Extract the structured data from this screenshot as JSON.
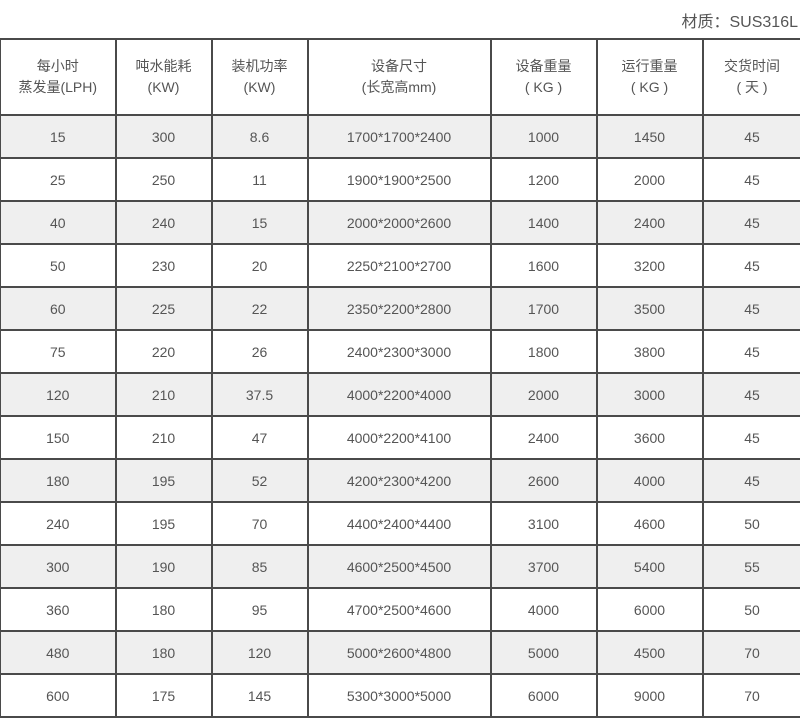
{
  "material_label": "材质：SUS316L",
  "headers": [
    [
      "每小时",
      "蒸发量(LPH)"
    ],
    [
      "吨水能耗",
      "(KW)"
    ],
    [
      "装机功率",
      "(KW)"
    ],
    [
      "设备尺寸",
      "(长宽高mm)"
    ],
    [
      "设备重量",
      "( KG )"
    ],
    [
      "运行重量",
      "( KG )"
    ],
    [
      "交货时间",
      "( 天 )"
    ]
  ],
  "rows": [
    [
      "15",
      "300",
      "8.6",
      "1700*1700*2400",
      "1000",
      "1450",
      "45"
    ],
    [
      "25",
      "250",
      "11",
      "1900*1900*2500",
      "1200",
      "2000",
      "45"
    ],
    [
      "40",
      "240",
      "15",
      "2000*2000*2600",
      "1400",
      "2400",
      "45"
    ],
    [
      "50",
      "230",
      "20",
      "2250*2100*2700",
      "1600",
      "3200",
      "45"
    ],
    [
      "60",
      "225",
      "22",
      "2350*2200*2800",
      "1700",
      "3500",
      "45"
    ],
    [
      "75",
      "220",
      "26",
      "2400*2300*3000",
      "1800",
      "3800",
      "45"
    ],
    [
      "120",
      "210",
      "37.5",
      "4000*2200*4000",
      "2000",
      "3000",
      "45"
    ],
    [
      "150",
      "210",
      "47",
      "4000*2200*4100",
      "2400",
      "3600",
      "45"
    ],
    [
      "180",
      "195",
      "52",
      "4200*2300*4200",
      "2600",
      "4000",
      "45"
    ],
    [
      "240",
      "195",
      "70",
      "4400*2400*4400",
      "3100",
      "4600",
      "50"
    ],
    [
      "300",
      "190",
      "85",
      "4600*2500*4500",
      "3700",
      "5400",
      "55"
    ],
    [
      "360",
      "180",
      "95",
      "4700*2500*4600",
      "4000",
      "6000",
      "50"
    ],
    [
      "480",
      "180",
      "120",
      "5000*2600*4800",
      "5000",
      "4500",
      "70"
    ],
    [
      "600",
      "175",
      "145",
      "5300*3000*5000",
      "6000",
      "9000",
      "70"
    ]
  ],
  "colors": {
    "stripe": "#efefef",
    "border": "#4a4a4a",
    "text": "#555555"
  }
}
